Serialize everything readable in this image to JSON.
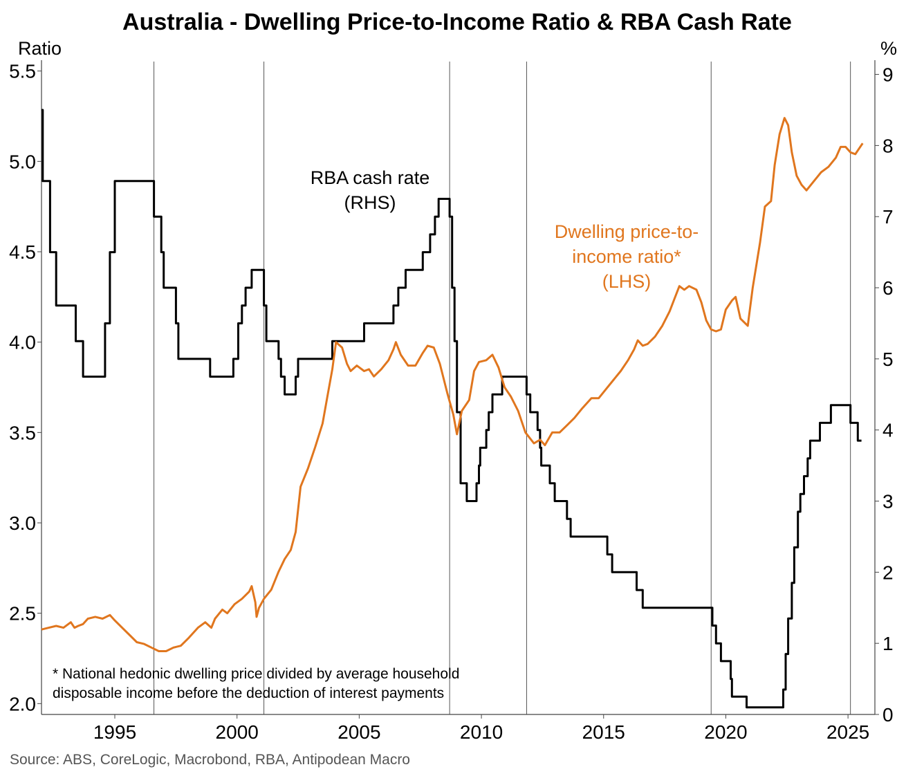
{
  "chart_data": {
    "type": "line",
    "title": "Australia - Dwelling Price-to-Income Ratio & RBA Cash Rate",
    "left_axis": {
      "unit_label": "Ratio",
      "ylim": [
        1.94,
        5.56
      ],
      "ticks": [
        "2.0",
        "2.5",
        "3.0",
        "3.5",
        "4.0",
        "4.5",
        "5.0",
        "5.5"
      ]
    },
    "right_axis": {
      "unit_label": "%",
      "ylim": [
        0,
        9.2
      ],
      "ticks": [
        "0",
        "1",
        "2",
        "3",
        "4",
        "5",
        "6",
        "7",
        "8",
        "9"
      ]
    },
    "x_axis": {
      "xlim": [
        1992.0,
        2026.1
      ],
      "ticks": [
        "1995",
        "2000",
        "2005",
        "2010",
        "2015",
        "2020",
        "2025"
      ]
    },
    "vertical_markers": [
      1996.6,
      2001.1,
      2008.7,
      2011.85,
      2019.4,
      2025.1
    ],
    "series": [
      {
        "name": "RBA cash rate",
        "annotation": [
          "RBA cash rate",
          "(RHS)"
        ],
        "axis": "right",
        "color": "#000000",
        "step": true,
        "points": [
          [
            1992.0,
            8.5
          ],
          [
            1992.05,
            7.5
          ],
          [
            1992.35,
            6.5
          ],
          [
            1992.6,
            5.75
          ],
          [
            1993.4,
            5.25
          ],
          [
            1993.7,
            4.75
          ],
          [
            1994.6,
            5.5
          ],
          [
            1994.8,
            6.5
          ],
          [
            1995.0,
            7.5
          ],
          [
            1996.6,
            7.0
          ],
          [
            1996.9,
            6.5
          ],
          [
            1997.0,
            6.0
          ],
          [
            1997.5,
            5.5
          ],
          [
            1997.6,
            5.0
          ],
          [
            1998.9,
            4.75
          ],
          [
            1999.85,
            5.0
          ],
          [
            2000.05,
            5.5
          ],
          [
            2000.2,
            5.75
          ],
          [
            2000.35,
            6.0
          ],
          [
            2000.6,
            6.25
          ],
          [
            2001.1,
            5.75
          ],
          [
            2001.2,
            5.25
          ],
          [
            2001.7,
            5.0
          ],
          [
            2001.8,
            4.75
          ],
          [
            2001.95,
            4.5
          ],
          [
            2002.4,
            4.75
          ],
          [
            2002.5,
            5.0
          ],
          [
            2003.9,
            5.25
          ],
          [
            2005.2,
            5.5
          ],
          [
            2006.4,
            5.75
          ],
          [
            2006.6,
            6.0
          ],
          [
            2006.9,
            6.25
          ],
          [
            2007.6,
            6.5
          ],
          [
            2007.9,
            6.75
          ],
          [
            2008.1,
            7.0
          ],
          [
            2008.25,
            7.25
          ],
          [
            2008.7,
            7.0
          ],
          [
            2008.8,
            6.0
          ],
          [
            2008.9,
            5.25
          ],
          [
            2009.0,
            4.25
          ],
          [
            2009.15,
            3.25
          ],
          [
            2009.4,
            3.0
          ],
          [
            2009.8,
            3.25
          ],
          [
            2009.9,
            3.5
          ],
          [
            2009.95,
            3.75
          ],
          [
            2010.2,
            4.0
          ],
          [
            2010.3,
            4.25
          ],
          [
            2010.45,
            4.5
          ],
          [
            2010.85,
            4.75
          ],
          [
            2011.85,
            4.5
          ],
          [
            2012.0,
            4.25
          ],
          [
            2012.3,
            4.0
          ],
          [
            2012.4,
            3.75
          ],
          [
            2012.45,
            3.5
          ],
          [
            2012.8,
            3.25
          ],
          [
            2013.0,
            3.0
          ],
          [
            2013.5,
            2.75
          ],
          [
            2013.65,
            2.5
          ],
          [
            2015.15,
            2.25
          ],
          [
            2015.35,
            2.0
          ],
          [
            2016.35,
            1.75
          ],
          [
            2016.6,
            1.5
          ],
          [
            2019.45,
            1.25
          ],
          [
            2019.6,
            1.0
          ],
          [
            2019.8,
            0.75
          ],
          [
            2020.2,
            0.5
          ],
          [
            2020.25,
            0.25
          ],
          [
            2020.85,
            0.1
          ],
          [
            2022.35,
            0.35
          ],
          [
            2022.45,
            0.85
          ],
          [
            2022.55,
            1.35
          ],
          [
            2022.7,
            1.85
          ],
          [
            2022.8,
            2.35
          ],
          [
            2022.95,
            2.85
          ],
          [
            2023.05,
            3.1
          ],
          [
            2023.2,
            3.35
          ],
          [
            2023.35,
            3.6
          ],
          [
            2023.45,
            3.85
          ],
          [
            2023.85,
            4.1
          ],
          [
            2024.3,
            4.35
          ],
          [
            2025.1,
            4.1
          ],
          [
            2025.4,
            3.85
          ],
          [
            2025.55,
            3.85
          ]
        ]
      },
      {
        "name": "Dwelling price-to-income ratio*",
        "annotation": [
          "Dwelling price-to-",
          "income ratio*",
          "(LHS)"
        ],
        "axis": "left",
        "color": "#E0761E",
        "step": false,
        "points": [
          [
            1992.0,
            2.41
          ],
          [
            1992.3,
            2.42
          ],
          [
            1992.6,
            2.43
          ],
          [
            1992.9,
            2.42
          ],
          [
            1993.2,
            2.45
          ],
          [
            1993.35,
            2.42
          ],
          [
            1993.5,
            2.43
          ],
          [
            1993.7,
            2.44
          ],
          [
            1993.9,
            2.47
          ],
          [
            1994.2,
            2.48
          ],
          [
            1994.5,
            2.47
          ],
          [
            1994.8,
            2.49
          ],
          [
            1995.0,
            2.46
          ],
          [
            1995.3,
            2.42
          ],
          [
            1995.6,
            2.38
          ],
          [
            1995.9,
            2.34
          ],
          [
            1996.2,
            2.33
          ],
          [
            1996.5,
            2.31
          ],
          [
            1996.8,
            2.29
          ],
          [
            1997.1,
            2.29
          ],
          [
            1997.4,
            2.31
          ],
          [
            1997.7,
            2.32
          ],
          [
            1998.0,
            2.36
          ],
          [
            1998.4,
            2.42
          ],
          [
            1998.7,
            2.45
          ],
          [
            1998.95,
            2.42
          ],
          [
            1999.1,
            2.47
          ],
          [
            1999.4,
            2.52
          ],
          [
            1999.6,
            2.5
          ],
          [
            1999.9,
            2.55
          ],
          [
            2000.2,
            2.58
          ],
          [
            2000.5,
            2.62
          ],
          [
            2000.6,
            2.65
          ],
          [
            2000.75,
            2.56
          ],
          [
            2000.8,
            2.48
          ],
          [
            2000.9,
            2.53
          ],
          [
            2001.1,
            2.58
          ],
          [
            2001.4,
            2.63
          ],
          [
            2001.7,
            2.73
          ],
          [
            2001.95,
            2.8
          ],
          [
            2002.2,
            2.85
          ],
          [
            2002.4,
            2.95
          ],
          [
            2002.6,
            3.2
          ],
          [
            2002.9,
            3.3
          ],
          [
            2003.2,
            3.42
          ],
          [
            2003.5,
            3.55
          ],
          [
            2003.7,
            3.7
          ],
          [
            2003.9,
            3.85
          ],
          [
            2004.05,
            4.0
          ],
          [
            2004.3,
            3.97
          ],
          [
            2004.5,
            3.88
          ],
          [
            2004.65,
            3.84
          ],
          [
            2004.9,
            3.87
          ],
          [
            2005.2,
            3.84
          ],
          [
            2005.4,
            3.85
          ],
          [
            2005.6,
            3.81
          ],
          [
            2005.9,
            3.85
          ],
          [
            2006.2,
            3.9
          ],
          [
            2006.4,
            3.96
          ],
          [
            2006.5,
            4.0
          ],
          [
            2006.7,
            3.93
          ],
          [
            2007.0,
            3.87
          ],
          [
            2007.3,
            3.87
          ],
          [
            2007.6,
            3.94
          ],
          [
            2007.8,
            3.98
          ],
          [
            2008.05,
            3.97
          ],
          [
            2008.3,
            3.88
          ],
          [
            2008.6,
            3.72
          ],
          [
            2008.85,
            3.6
          ],
          [
            2009.0,
            3.49
          ],
          [
            2009.2,
            3.62
          ],
          [
            2009.5,
            3.68
          ],
          [
            2009.7,
            3.84
          ],
          [
            2009.9,
            3.89
          ],
          [
            2010.2,
            3.9
          ],
          [
            2010.45,
            3.93
          ],
          [
            2010.7,
            3.86
          ],
          [
            2010.95,
            3.75
          ],
          [
            2011.2,
            3.7
          ],
          [
            2011.5,
            3.62
          ],
          [
            2011.8,
            3.5
          ],
          [
            2012.15,
            3.44
          ],
          [
            2012.4,
            3.46
          ],
          [
            2012.6,
            3.43
          ],
          [
            2012.9,
            3.5
          ],
          [
            2013.2,
            3.5
          ],
          [
            2013.5,
            3.54
          ],
          [
            2013.8,
            3.58
          ],
          [
            2014.1,
            3.63
          ],
          [
            2014.5,
            3.69
          ],
          [
            2014.8,
            3.69
          ],
          [
            2015.1,
            3.74
          ],
          [
            2015.4,
            3.79
          ],
          [
            2015.7,
            3.84
          ],
          [
            2016.0,
            3.9
          ],
          [
            2016.25,
            3.96
          ],
          [
            2016.4,
            4.01
          ],
          [
            2016.6,
            3.98
          ],
          [
            2016.8,
            3.99
          ],
          [
            2017.1,
            4.03
          ],
          [
            2017.4,
            4.09
          ],
          [
            2017.7,
            4.17
          ],
          [
            2017.9,
            4.24
          ],
          [
            2018.1,
            4.31
          ],
          [
            2018.3,
            4.29
          ],
          [
            2018.5,
            4.31
          ],
          [
            2018.8,
            4.29
          ],
          [
            2019.0,
            4.22
          ],
          [
            2019.2,
            4.12
          ],
          [
            2019.4,
            4.07
          ],
          [
            2019.6,
            4.06
          ],
          [
            2019.8,
            4.07
          ],
          [
            2020.0,
            4.18
          ],
          [
            2020.25,
            4.23
          ],
          [
            2020.4,
            4.25
          ],
          [
            2020.6,
            4.13
          ],
          [
            2020.9,
            4.09
          ],
          [
            2021.1,
            4.3
          ],
          [
            2021.4,
            4.55
          ],
          [
            2021.6,
            4.75
          ],
          [
            2021.85,
            4.78
          ],
          [
            2022.0,
            4.98
          ],
          [
            2022.2,
            5.15
          ],
          [
            2022.4,
            5.24
          ],
          [
            2022.55,
            5.2
          ],
          [
            2022.7,
            5.05
          ],
          [
            2022.9,
            4.92
          ],
          [
            2023.1,
            4.87
          ],
          [
            2023.3,
            4.84
          ],
          [
            2023.6,
            4.89
          ],
          [
            2023.9,
            4.94
          ],
          [
            2024.2,
            4.97
          ],
          [
            2024.5,
            5.02
          ],
          [
            2024.7,
            5.08
          ],
          [
            2024.9,
            5.08
          ],
          [
            2025.1,
            5.05
          ],
          [
            2025.3,
            5.04
          ],
          [
            2025.6,
            5.1
          ]
        ]
      }
    ],
    "footnote": [
      "* National hedonic dwelling price divided by average household",
      "disposable income before the deduction of interest payments"
    ],
    "source": "Source: ABS, CoreLogic, Macrobond, RBA, Antipodean Macro",
    "grid": false
  }
}
